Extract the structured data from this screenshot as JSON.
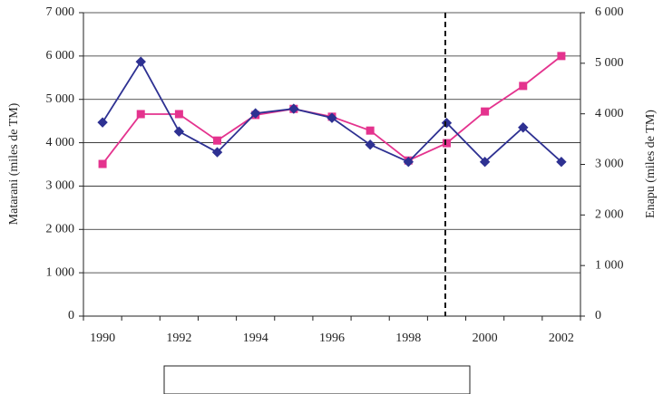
{
  "chart_data": {
    "type": "line",
    "categories": [
      "1990",
      null,
      "1992",
      null,
      "1994",
      null,
      "1996",
      null,
      "1998",
      null,
      "2000",
      null,
      "2002"
    ],
    "series": [
      {
        "name": "Matarani",
        "color": "#e4338e",
        "values": [
          3510,
          4660,
          4660,
          4050,
          4640,
          4780,
          4600,
          4280,
          3590,
          3990,
          4720,
          5310,
          6000
        ]
      },
      {
        "name": "ENAPU",
        "color": "#2e3192",
        "axis": "y2",
        "values": [
          3830,
          5030,
          3650,
          3240,
          4010,
          4100,
          3920,
          3390,
          3050,
          3820,
          3050,
          3730,
          3050
        ]
      }
    ],
    "ylabel": "Matarani (miles de TM)",
    "y2label": "Enapu (miles de TM)",
    "ylim": [
      0,
      7000
    ],
    "yticks": [
      0,
      {
        "value": 1000,
        "label": "1 000"
      },
      {
        "value": 2000,
        "label": "2 000"
      },
      {
        "value": 3000,
        "label": "3 000"
      },
      {
        "value": 4000,
        "label": "4 000"
      },
      {
        "value": 5000,
        "label": "5 000"
      },
      {
        "value": 6000,
        "label": "6 000"
      },
      {
        "value": 7000,
        "label": "7 000"
      }
    ],
    "y2lim": [
      0,
      6000
    ],
    "y2ticks": [
      0,
      {
        "value": 1000,
        "label": "1 000"
      },
      {
        "value": 2000,
        "label": "2 000"
      },
      {
        "value": 3000,
        "label": "3 000"
      },
      {
        "value": 4000,
        "label": "4 000"
      },
      {
        "value": 5000,
        "label": "5 000"
      },
      {
        "value": 6000,
        "label": "6 000"
      }
    ],
    "grid": true
  }
}
